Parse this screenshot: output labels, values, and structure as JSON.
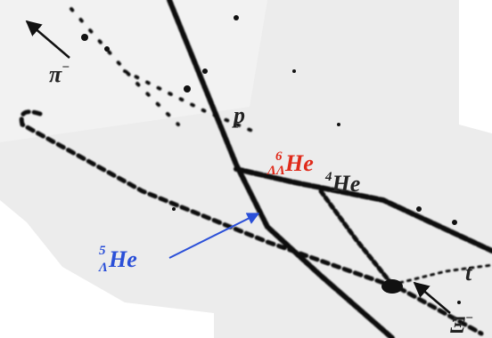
{
  "labels": [
    {
      "main": "π",
      "sup": "−"
    },
    {
      "main": "p"
    },
    {
      "main": "He",
      "sup": "6",
      "sub": "ΛΛ"
    },
    {
      "main": "He",
      "sup": "4"
    },
    {
      "main": "He",
      "sup": "5",
      "sub": "Λ"
    },
    {
      "main": "t"
    },
    {
      "main": "Ξ",
      "sup": "−"
    }
  ]
}
